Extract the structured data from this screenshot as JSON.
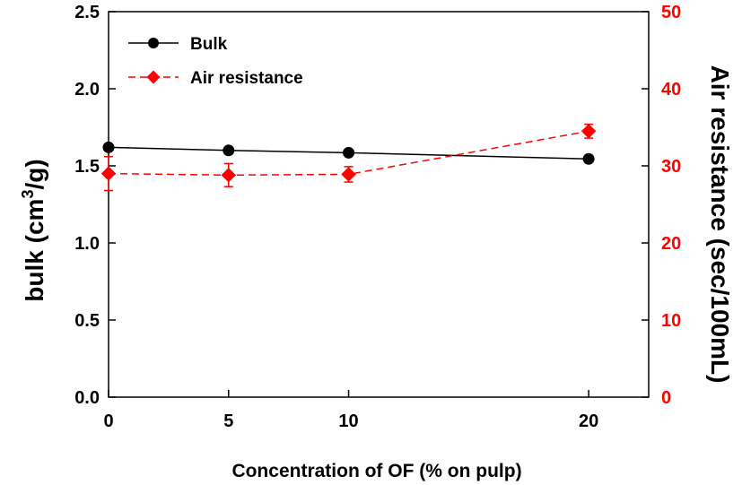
{
  "chart_data": {
    "type": "line",
    "title": "",
    "x": [
      0,
      5,
      10,
      20
    ],
    "xlim": [
      0,
      22.5
    ],
    "x_ticks": [
      0,
      5,
      10,
      20
    ],
    "xlabel": "Concentration of OF (% on pulp)",
    "y_left": {
      "label_main": "bulk (cm",
      "label_sup": "3",
      "label_tail": "/g)",
      "lim": [
        0,
        2.5
      ],
      "ticks": [
        "0.0",
        "0.5",
        "1.0",
        "1.5",
        "2.0",
        "2.5"
      ],
      "color": "#000000"
    },
    "y_right": {
      "label": "Air resistance (sec/100mL)",
      "lim": [
        0,
        50
      ],
      "ticks": [
        "0",
        "10",
        "20",
        "30",
        "40",
        "50"
      ],
      "color": "#ff0000"
    },
    "series": [
      {
        "name": "Bulk",
        "axis": "left",
        "marker": "circle",
        "line": "solid",
        "color": "#000000",
        "values": [
          1.62,
          1.6,
          1.585,
          1.545
        ],
        "errors": [
          0.015,
          0.015,
          0.015,
          0.02
        ]
      },
      {
        "name": "Air resistance",
        "axis": "right",
        "marker": "diamond",
        "line": "dashed",
        "color": "#ff0000",
        "values": [
          29.0,
          28.8,
          28.9,
          34.5
        ],
        "errors": [
          2.2,
          1.5,
          1.0,
          0.9
        ]
      }
    ],
    "legend": "top-left",
    "grid": false
  }
}
